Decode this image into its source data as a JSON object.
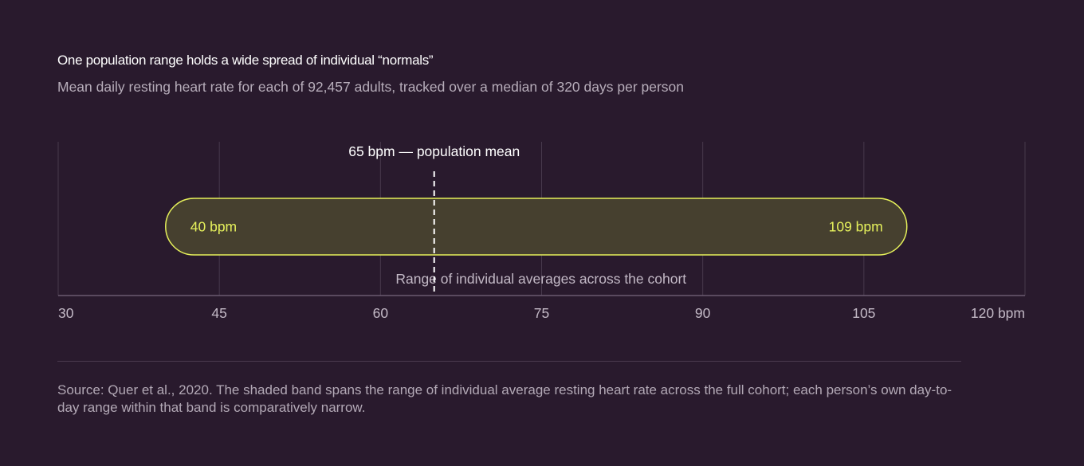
{
  "header": {
    "title": "One population range holds a wide spread of individual “normals”",
    "subtitle": "Mean daily resting heart rate for each of 92,457 adults, tracked over a median of 320 days per person"
  },
  "chart_data": {
    "type": "range-band",
    "xlim": [
      30,
      120
    ],
    "x_ticks": [
      30,
      45,
      60,
      75,
      90,
      105,
      120
    ],
    "x_tick_labels": [
      "30",
      "45",
      "60",
      "75",
      "90",
      "105",
      "120 bpm"
    ],
    "grid": true,
    "band": {
      "min": 40,
      "max": 109,
      "min_label": "40 bpm",
      "max_label": "109 bpm",
      "caption": "Range of individual averages across the cohort"
    },
    "mean": {
      "value": 65,
      "label": "65 bpm — population mean"
    },
    "colors": {
      "band_stroke": "#e5f05a",
      "band_fill": "#46402f",
      "band_label": "#e6f15c",
      "grid": "#47394c",
      "axis": "#6a5a70",
      "tick_label": "#c3b9c6",
      "mean_line": "#ffffff"
    }
  },
  "footer": {
    "source": "Source: Quer et al., 2020. The shaded band spans the range of individual average resting heart rate across the full cohort; each person’s own day-to-day range within that band is comparatively narrow."
  }
}
